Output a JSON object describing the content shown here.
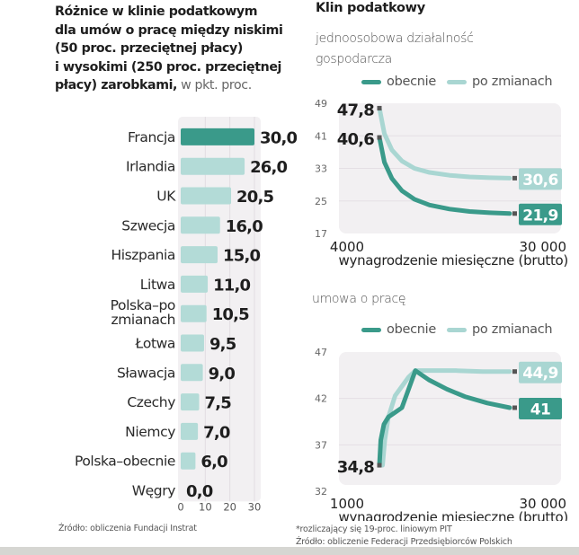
{
  "left": {
    "title_bold": "Różnice w klinie podatkowym dla umów o pracę  między niskimi (50 proc. przeciętnej płacy) i wysokimi (250 proc. przeciętnej płacy) zarobkami,",
    "title_lines": [
      "Różnice w klinie podatkowym",
      "dla umów o pracę  między niskimi",
      "(50 proc. przeciętnej płacy)",
      "i wysokimi (250 proc. przeciętnej",
      "płacy) zarobkami,"
    ],
    "title_unit": " w pkt. proc.",
    "source": "Źródło:  obliczenia Fundacji Instrat"
  },
  "right": {
    "title": "Klin podatkowy",
    "subtitle1": "jednoosobowa działalność gospodarcza",
    "subtitle1_lines": [
      "jednoosobowa działalność",
      "gospodarcza"
    ],
    "subtitle2": "umowa o pracę",
    "legend": {
      "current": "obecnie",
      "after": "po zmianach"
    },
    "xlabel": "wynagrodzenie miesięczne (brutto)",
    "footnote": "*rozliczający się 19-proc. liniowym PIT",
    "source": "Źródło: obliczenie Federacji Przedsiębiorców Polskich"
  },
  "colors": {
    "current": "#3a9a8a",
    "after": "#a9d6d2",
    "bar_highlight": "#3a9a8a",
    "bar_normal": "#b3dbd7",
    "plot_bg": "#f2f0f2",
    "label_dark": "#1e1e1e"
  },
  "chart_data": [
    {
      "type": "bar",
      "orientation": "horizontal",
      "title": "Różnice w klinie podatkowym dla umów o pracę między niskimi (50 proc. przeciętnej płacy) i wysokimi (250 proc. przeciętnej płacy) zarobkami, w pkt. proc.",
      "categories": [
        "Francja",
        "Irlandia",
        "UK",
        "Szwecja",
        "Hiszpania",
        "Litwa",
        "Polska–po zmianach",
        "Łotwa",
        "Sławacja",
        "Czechy",
        "Niemcy",
        "Polska–obecnie",
        "Węgry"
      ],
      "category_lines": [
        [
          "Francja"
        ],
        [
          "Irlandia"
        ],
        [
          "UK"
        ],
        [
          "Szwecja"
        ],
        [
          "Hiszpania"
        ],
        [
          "Litwa"
        ],
        [
          "Polska–po",
          "zmianach"
        ],
        [
          "Łotwa"
        ],
        [
          "Sławacja"
        ],
        [
          "Czechy"
        ],
        [
          "Niemcy"
        ],
        [
          "Polska–obecnie"
        ],
        [
          "Węgry"
        ]
      ],
      "values": [
        30.0,
        26.0,
        20.5,
        16.0,
        15.0,
        11.0,
        10.5,
        9.5,
        9.0,
        7.5,
        7.0,
        6.0,
        0.0
      ],
      "value_labels": [
        "30,0",
        "26,0",
        "20,5",
        "16,0",
        "15,0",
        "11,0",
        "10,5",
        "9,5",
        "9,0",
        "7,5",
        "7,0",
        "6,0",
        "0,0"
      ],
      "highlight_index": 0,
      "xticks": [
        0,
        10,
        20,
        30
      ],
      "xlim": [
        0,
        30
      ],
      "grid": true
    },
    {
      "type": "line",
      "title": "jednoosobowa działalność gospodarcza",
      "xlabel": "wynagrodzenie miesięczne (brutto)",
      "x_tick_labels": [
        "4000",
        "30 000"
      ],
      "xlim": [
        4000,
        30000
      ],
      "ylim": [
        17,
        49
      ],
      "yticks": [
        49,
        41,
        33,
        25,
        17
      ],
      "grid": true,
      "series": [
        {
          "name": "obecnie",
          "key": "current",
          "x": [
            4000,
            5000,
            6500,
            8500,
            11000,
            14000,
            18000,
            22000,
            26000,
            30000
          ],
          "y": [
            40.6,
            34.5,
            30.5,
            27.5,
            25.4,
            24.0,
            23.0,
            22.4,
            22.1,
            21.9
          ],
          "start_label": "40,6",
          "end_label": "21,9"
        },
        {
          "name": "po zmianach",
          "key": "after",
          "x": [
            4000,
            5000,
            6500,
            8500,
            11000,
            14000,
            18000,
            22000,
            26000,
            30000
          ],
          "y": [
            47.8,
            41.5,
            37.5,
            34.8,
            33.0,
            32.0,
            31.3,
            30.9,
            30.7,
            30.6
          ],
          "start_label": "47,8",
          "end_label": "30,6"
        }
      ]
    },
    {
      "type": "line",
      "title": "umowa o pracę",
      "xlabel": "wynagrodzenie miesięczne (brutto)",
      "x_tick_labels": [
        "1000",
        "30 000"
      ],
      "xlim": [
        1000,
        30000
      ],
      "ylim": [
        32,
        47
      ],
      "yticks": [
        47,
        42,
        37,
        32
      ],
      "grid": true,
      "series": [
        {
          "name": "obecnie",
          "key": "current",
          "x": [
            1000,
            1300,
            2000,
            3000,
            4500,
            6000,
            7500,
            9000,
            12000,
            16000,
            20000,
            25000,
            30000
          ],
          "y": [
            34.8,
            37.5,
            39.2,
            40.0,
            40.5,
            41.0,
            43.0,
            45.0,
            44.0,
            43.0,
            42.2,
            41.5,
            41.0
          ],
          "start_label": "34,8",
          "end_label": "41"
        },
        {
          "name": "po zmianach",
          "key": "after",
          "x": [
            1700,
            2200,
            3000,
            4500,
            6000,
            7500,
            9000,
            12000,
            18000,
            24000,
            30000
          ],
          "y": [
            34.8,
            37.5,
            40.0,
            42.3,
            43.3,
            44.3,
            45.0,
            45.0,
            45.0,
            44.9,
            44.9
          ],
          "end_label": "44,9"
        }
      ]
    }
  ]
}
